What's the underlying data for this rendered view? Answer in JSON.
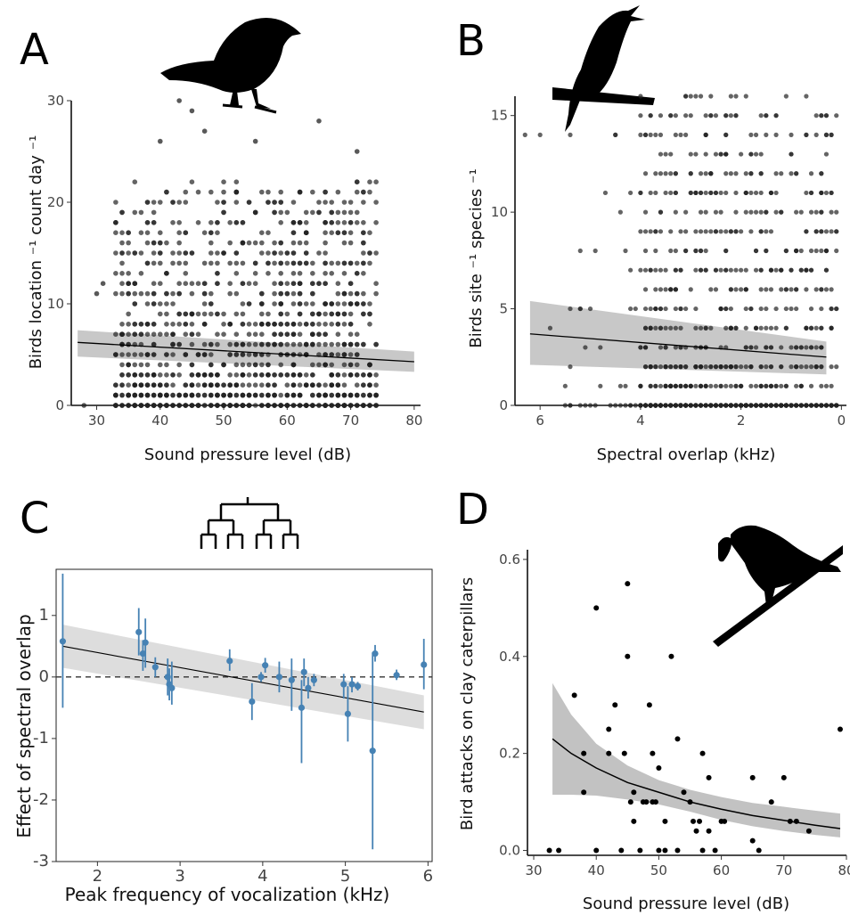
{
  "chart_data": [
    {
      "panel": "A",
      "type": "scatter",
      "xlabel": "Sound pressure level (dB)",
      "ylabel": "Birds location ⁻¹ count day ⁻¹",
      "xlim": [
        26,
        81
      ],
      "ylim": [
        0,
        30
      ],
      "xticks": [
        30,
        40,
        50,
        60,
        70,
        80
      ],
      "yticks": [
        0,
        10,
        20,
        30
      ],
      "points": {
        "x_range": [
          27,
          80
        ],
        "y_max": 30,
        "note_values": "dense cloud, counts 0-30 across 27-80 dB; mostly 0-15",
        "sample": [
          [
            28,
            0
          ],
          [
            30,
            11
          ],
          [
            31,
            12
          ],
          [
            43,
            30
          ],
          [
            45,
            29
          ],
          [
            65,
            28
          ],
          [
            71,
            25
          ],
          [
            47,
            27
          ],
          [
            55,
            26
          ],
          [
            40,
            26
          ]
        ]
      },
      "trend": {
        "x": [
          27,
          80
        ],
        "y": [
          6.2,
          4.3
        ]
      },
      "ci": {
        "upper": [
          7.4,
          5.3
        ],
        "lower": [
          4.8,
          3.3
        ]
      },
      "grid": false
    },
    {
      "panel": "B",
      "type": "scatter",
      "xlabel": "Spectral overlap (kHz)",
      "ylabel": "Birds site ⁻¹ species ⁻¹",
      "xlim": [
        6.5,
        -0.1
      ],
      "ylim": [
        0,
        16
      ],
      "xticks": [
        6,
        4,
        2,
        0
      ],
      "yticks": [
        0,
        5,
        10,
        15
      ],
      "trend": {
        "x": [
          6.2,
          0.3
        ],
        "y": [
          3.7,
          2.5
        ]
      },
      "ci": {
        "upper": [
          5.4,
          3.3
        ],
        "lower": [
          2.1,
          1.6
        ]
      },
      "grid": false
    },
    {
      "panel": "C",
      "type": "scatter",
      "xlabel": "Peak frequency of vocalization (kHz)",
      "ylabel": "Effect of spectral overlap",
      "xlim": [
        1.5,
        6.05
      ],
      "ylim": [
        -3,
        1.75
      ],
      "xticks": [
        2,
        3,
        4,
        5,
        6
      ],
      "yticks": [
        -3,
        -2,
        -1,
        0,
        1
      ],
      "color": "#4682b4",
      "points": [
        {
          "x": 1.58,
          "y": 0.58,
          "lo": -0.5,
          "hi": 1.68
        },
        {
          "x": 2.5,
          "y": 0.73,
          "lo": 0.35,
          "hi": 1.12
        },
        {
          "x": 2.55,
          "y": 0.38,
          "lo": 0.1,
          "hi": 0.6
        },
        {
          "x": 2.58,
          "y": 0.56,
          "lo": 0.15,
          "hi": 0.95
        },
        {
          "x": 2.7,
          "y": 0.16,
          "lo": 0.0,
          "hi": 0.32
        },
        {
          "x": 2.85,
          "y": 0.0,
          "lo": -0.3,
          "hi": 0.3
        },
        {
          "x": 2.87,
          "y": -0.12,
          "lo": -0.38,
          "hi": 0.14
        },
        {
          "x": 2.9,
          "y": -0.18,
          "lo": -0.45,
          "hi": 0.25
        },
        {
          "x": 3.6,
          "y": 0.26,
          "lo": 0.1,
          "hi": 0.45
        },
        {
          "x": 3.87,
          "y": -0.4,
          "lo": -0.7,
          "hi": -0.1
        },
        {
          "x": 3.98,
          "y": 0.0,
          "lo": -0.08,
          "hi": 0.08
        },
        {
          "x": 4.03,
          "y": 0.19,
          "lo": 0.07,
          "hi": 0.31
        },
        {
          "x": 4.2,
          "y": 0.0,
          "lo": -0.25,
          "hi": 0.25
        },
        {
          "x": 4.35,
          "y": -0.05,
          "lo": -0.55,
          "hi": 0.3
        },
        {
          "x": 4.47,
          "y": -0.5,
          "lo": -1.4,
          "hi": -0.05
        },
        {
          "x": 4.5,
          "y": 0.08,
          "lo": -0.15,
          "hi": 0.3
        },
        {
          "x": 4.55,
          "y": -0.18,
          "lo": -0.35,
          "hi": 0.0
        },
        {
          "x": 4.62,
          "y": -0.05,
          "lo": -0.15,
          "hi": 0.05
        },
        {
          "x": 4.98,
          "y": -0.12,
          "lo": -0.35,
          "hi": 0.05
        },
        {
          "x": 5.03,
          "y": -0.6,
          "lo": -1.05,
          "hi": -0.15
        },
        {
          "x": 5.08,
          "y": -0.12,
          "lo": -0.25,
          "hi": 0.0
        },
        {
          "x": 5.15,
          "y": -0.15,
          "lo": -0.22,
          "hi": -0.08
        },
        {
          "x": 5.33,
          "y": -1.2,
          "lo": -2.8,
          "hi": 0.4
        },
        {
          "x": 5.36,
          "y": 0.38,
          "lo": 0.25,
          "hi": 0.52
        },
        {
          "x": 5.62,
          "y": 0.03,
          "lo": -0.05,
          "hi": 0.12
        },
        {
          "x": 5.95,
          "y": 0.2,
          "lo": -0.2,
          "hi": 0.62
        }
      ],
      "trend": {
        "x": [
          1.58,
          5.95
        ],
        "y": [
          0.5,
          -0.57
        ]
      },
      "ci": {
        "upper": [
          0.85,
          -0.3
        ],
        "lower": [
          0.15,
          -0.85
        ]
      },
      "reference_line": 0,
      "grid": false
    },
    {
      "panel": "D",
      "type": "scatter",
      "xlabel": "Sound pressure level (dB)",
      "ylabel": "Bird attacks on clay caterpillars",
      "xlim": [
        29,
        80
      ],
      "ylim": [
        -0.01,
        0.62
      ],
      "xticks": [
        30,
        40,
        50,
        60,
        70,
        80
      ],
      "yticks": [
        0.0,
        0.2,
        0.4,
        0.6
      ],
      "points": [
        [
          32.5,
          0.0
        ],
        [
          34,
          0.0
        ],
        [
          36.5,
          0.32
        ],
        [
          38,
          0.2
        ],
        [
          38,
          0.12
        ],
        [
          40,
          0.0
        ],
        [
          40,
          0.5
        ],
        [
          42,
          0.2
        ],
        [
          42,
          0.25
        ],
        [
          43,
          0.3
        ],
        [
          44,
          0.0
        ],
        [
          44.5,
          0.2
        ],
        [
          45,
          0.55
        ],
        [
          45,
          0.4
        ],
        [
          45.5,
          0.1
        ],
        [
          46,
          0.12
        ],
        [
          46,
          0.06
        ],
        [
          47,
          0.0
        ],
        [
          47.5,
          0.1
        ],
        [
          48,
          0.1
        ],
        [
          48.5,
          0.3
        ],
        [
          49,
          0.2
        ],
        [
          49,
          0.1
        ],
        [
          49.5,
          0.1
        ],
        [
          50,
          0.17
        ],
        [
          50,
          0.0
        ],
        [
          51,
          0.06
        ],
        [
          51,
          0.0
        ],
        [
          52,
          0.4
        ],
        [
          53,
          0.23
        ],
        [
          53,
          0.0
        ],
        [
          54,
          0.12
        ],
        [
          55,
          0.1
        ],
        [
          55.5,
          0.06
        ],
        [
          56,
          0.04
        ],
        [
          56.5,
          0.06
        ],
        [
          57,
          0.2
        ],
        [
          57,
          0.0
        ],
        [
          58,
          0.04
        ],
        [
          58,
          0.15
        ],
        [
          59,
          0.0
        ],
        [
          60,
          0.06
        ],
        [
          60.5,
          0.06
        ],
        [
          65,
          0.15
        ],
        [
          65,
          0.02
        ],
        [
          66,
          0.0
        ],
        [
          68,
          0.1
        ],
        [
          70,
          0.15
        ],
        [
          71,
          0.06
        ],
        [
          72,
          0.06
        ],
        [
          74,
          0.04
        ],
        [
          79,
          0.25
        ]
      ],
      "trend": {
        "x": [
          33,
          36,
          40,
          45,
          50,
          55,
          60,
          65,
          70,
          75,
          79
        ],
        "y": [
          0.23,
          0.2,
          0.17,
          0.14,
          0.12,
          0.1,
          0.085,
          0.072,
          0.062,
          0.052,
          0.045
        ]
      },
      "ci_upper": [
        0.345,
        0.28,
        0.22,
        0.175,
        0.145,
        0.125,
        0.11,
        0.098,
        0.09,
        0.082,
        0.076
      ],
      "ci_lower": [
        0.115,
        0.115,
        0.113,
        0.105,
        0.095,
        0.08,
        0.063,
        0.05,
        0.04,
        0.032,
        0.027
      ],
      "grid": false
    }
  ],
  "panel_labels": [
    "A",
    "B",
    "C",
    "D"
  ],
  "icons": [
    "sparrow-silhouette",
    "singing-bird-silhouette",
    "phylogeny-tree",
    "bird-with-caterpillar-silhouette"
  ]
}
